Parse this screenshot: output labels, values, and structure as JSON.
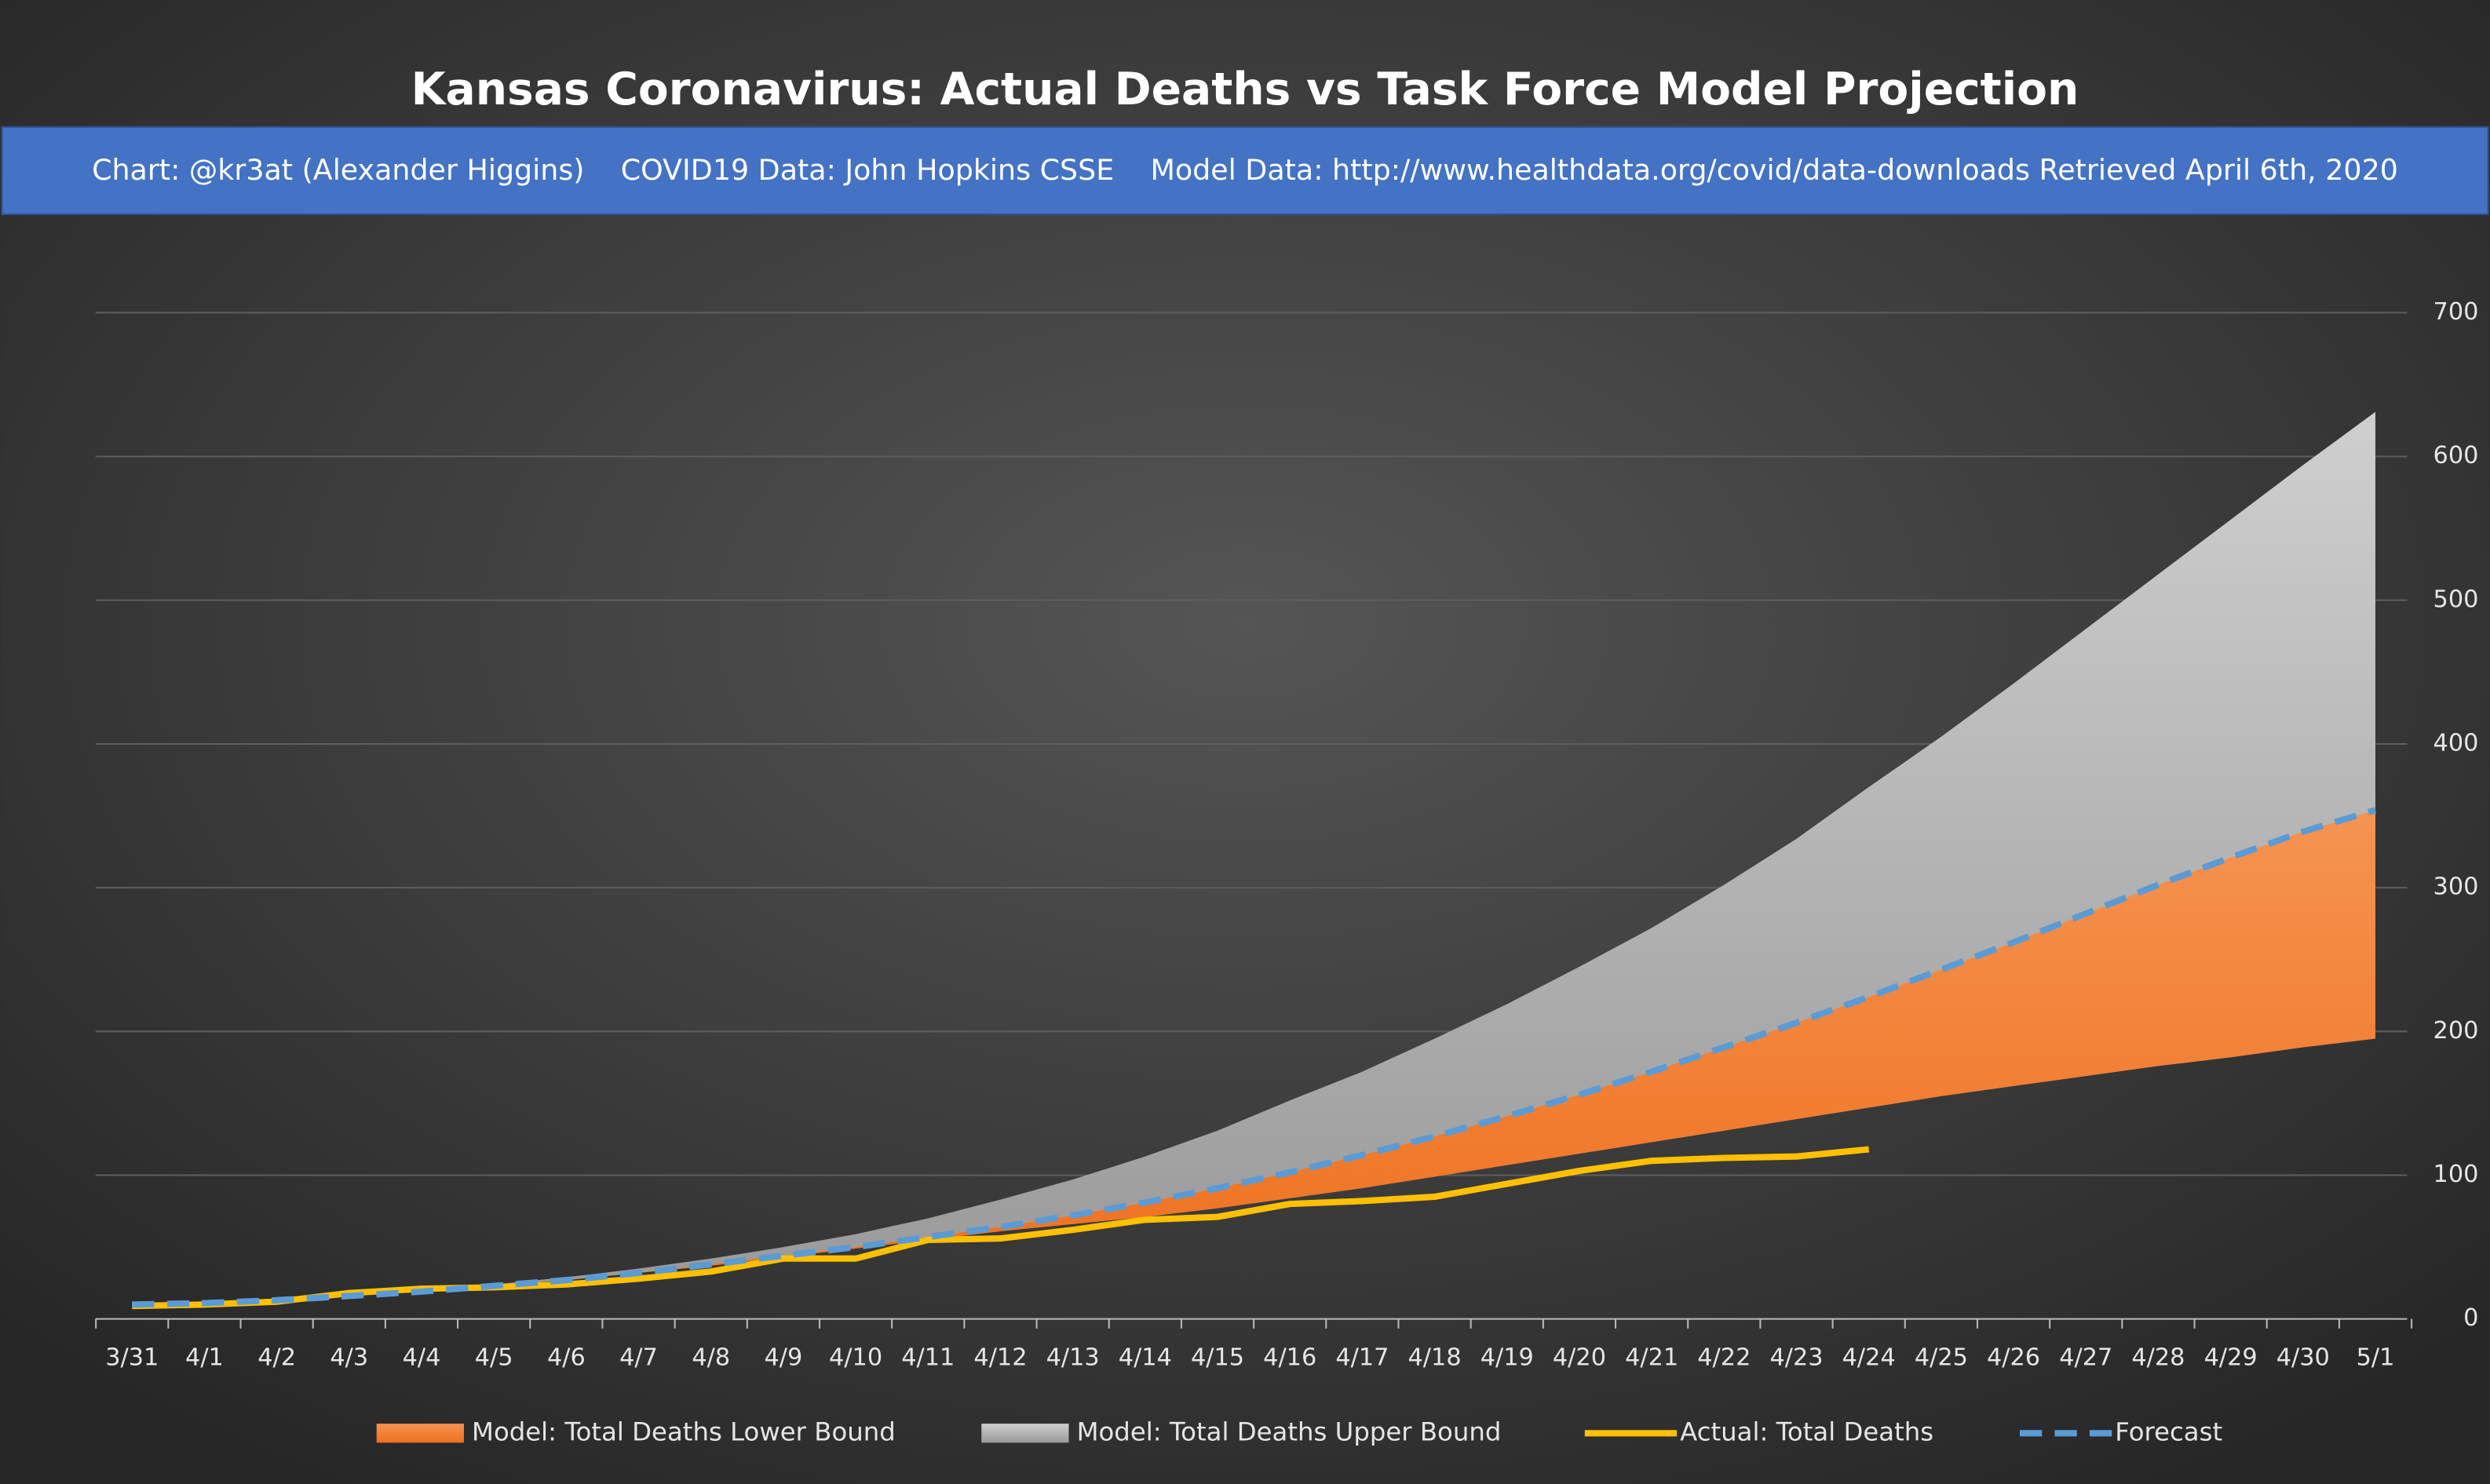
{
  "chart_data": {
    "type": "area",
    "title": "Kansas Coronavirus: Actual Deaths vs Task Force Model Projection",
    "subtitle": "Chart: @kr3at (Alexander Higgins)    COVID19 Data: John Hopkins CSSE    Model Data: http://www.healthdata.org/covid/data-downloads Retrieved April 6th, 2020",
    "categories": [
      "3/31",
      "4/1",
      "4/2",
      "4/3",
      "4/4",
      "4/5",
      "4/6",
      "4/7",
      "4/8",
      "4/9",
      "4/10",
      "4/11",
      "4/12",
      "4/13",
      "4/14",
      "4/15",
      "4/16",
      "4/17",
      "4/18",
      "4/19",
      "4/20",
      "4/21",
      "4/22",
      "4/23",
      "4/24",
      "4/25",
      "4/26",
      "4/27",
      "4/28",
      "4/29",
      "4/30",
      "5/1"
    ],
    "series": [
      {
        "name": "Model: Total Deaths Lower Bound",
        "color": "#f07b2b",
        "style": "area",
        "values": [
          10,
          11,
          13,
          16,
          19,
          23,
          27,
          32,
          37,
          43,
          49,
          55,
          61,
          66,
          71,
          77,
          84,
          91,
          99,
          107,
          115,
          123,
          131,
          139,
          147,
          155,
          162,
          169,
          176,
          182,
          189,
          195
        ]
      },
      {
        "name": "Model: Total Deaths Upper Bound",
        "color": "#b4b4b4",
        "style": "area",
        "values": [
          10,
          11,
          13,
          16,
          20,
          24,
          29,
          35,
          42,
          50,
          59,
          70,
          83,
          97,
          113,
          131,
          152,
          172,
          195,
          219,
          245,
          272,
          302,
          334,
          370,
          405,
          442,
          480,
          518,
          556,
          594,
          631
        ]
      },
      {
        "name": "Actual: Total Deaths",
        "color": "#ffc000",
        "style": "line",
        "values": [
          9,
          10,
          12,
          18,
          21,
          22,
          24,
          28,
          33,
          42,
          42,
          55,
          56,
          62,
          69,
          71,
          80,
          82,
          85,
          94,
          103,
          110,
          112,
          113,
          118,
          null,
          null,
          null,
          null,
          null,
          null,
          null
        ]
      },
      {
        "name": "Forecast",
        "color": "#5b9bd5",
        "style": "dashed",
        "values": [
          10,
          11,
          13,
          16,
          19,
          23,
          27,
          32,
          38,
          44,
          50,
          57,
          64,
          72,
          81,
          91,
          102,
          114,
          127,
          141,
          156,
          172,
          189,
          206,
          224,
          243,
          262,
          282,
          302,
          321,
          339,
          354
        ]
      }
    ],
    "ylim": [
      0,
      700
    ],
    "yticks": [
      0,
      100,
      200,
      300,
      400,
      500,
      600,
      700
    ],
    "grid": true,
    "legend": "bottom"
  }
}
